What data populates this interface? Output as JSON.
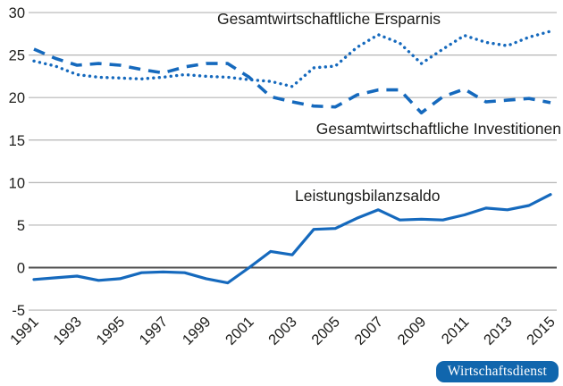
{
  "chart_data": {
    "type": "line",
    "x": [
      1991,
      1992,
      1993,
      1994,
      1995,
      1996,
      1997,
      1998,
      1999,
      2000,
      2001,
      2002,
      2003,
      2004,
      2005,
      2006,
      2007,
      2008,
      2009,
      2010,
      2011,
      2012,
      2013,
      2014,
      2015
    ],
    "x_tick_labels": [
      "1991",
      "1993",
      "1995",
      "1997",
      "1999",
      "2001",
      "2003",
      "2005",
      "2007",
      "2009",
      "2011",
      "2013",
      "2015"
    ],
    "y_ticks": [
      30,
      25,
      20,
      15,
      10,
      5,
      0,
      -5
    ],
    "ylim": [
      -5,
      30
    ],
    "grid": true,
    "zero_line_value": 0,
    "legend_position": "inline-annotations",
    "series": [
      {
        "name": "Gesamtwirtschaftliche Ersparnis",
        "style": "dotted",
        "color": "#1569bd",
        "values": [
          24.3,
          23.7,
          22.7,
          22.4,
          22.3,
          22.2,
          22.4,
          22.7,
          22.5,
          22.4,
          22.1,
          21.9,
          21.3,
          23.5,
          23.7,
          25.9,
          27.4,
          26.4,
          24.0,
          25.7,
          27.3,
          26.5,
          26.1,
          27.1,
          27.8
        ]
      },
      {
        "name": "Gesamtwirtschaftliche Investitionen",
        "style": "dashed",
        "color": "#1569bd",
        "values": [
          25.7,
          24.6,
          23.8,
          24.0,
          23.8,
          23.3,
          22.9,
          23.6,
          24.0,
          24.0,
          22.4,
          20.1,
          19.5,
          19.0,
          18.9,
          20.3,
          20.9,
          20.9,
          18.2,
          20.1,
          21.0,
          19.5,
          19.7,
          19.9,
          19.4
        ]
      },
      {
        "name": "Leistungsbilanzsaldo",
        "style": "solid",
        "color": "#1569bd",
        "values": [
          -1.4,
          -1.2,
          -1.0,
          -1.5,
          -1.3,
          -0.6,
          -0.5,
          -0.6,
          -1.3,
          -1.8,
          0.0,
          1.9,
          1.5,
          4.5,
          4.6,
          5.8,
          6.8,
          5.6,
          5.7,
          5.6,
          6.2,
          7.0,
          6.8,
          7.3,
          8.6
        ]
      }
    ]
  },
  "badge": {
    "label": "Wirtschaftsdienst",
    "background": "#1166ad",
    "text_color": "#ffffff"
  },
  "colors": {
    "line_blue": "#1569bd",
    "grid": "#b5b5b5",
    "zero_line": "#4d4d4d",
    "text": "#1d1d1b"
  }
}
